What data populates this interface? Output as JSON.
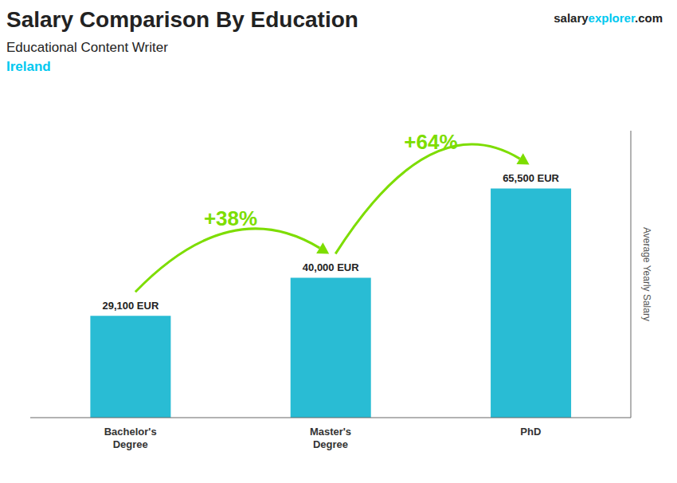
{
  "chart_data": {
    "type": "bar",
    "title": "Salary Comparison By Education",
    "subtitle": "Educational Content Writer",
    "annotations": [
      {
        "text": "Ireland",
        "color": "#00c8f0"
      }
    ],
    "source": [
      {
        "text": "salary"
      },
      {
        "text": "explorer",
        "color": "#00c8f0"
      },
      {
        "text": ".com"
      }
    ],
    "ylabel": "Average Yearly Salary",
    "categories": [
      "Bachelor's\nDegree",
      "Master's\nDegree",
      "PhD"
    ],
    "values": [
      29100,
      40000,
      65500
    ],
    "value_labels": [
      "29,100 EUR",
      "40,000 EUR",
      "65,500 EUR"
    ],
    "data_labels": true,
    "arrows": [
      {
        "label": "+38%",
        "color": "#7ddd00"
      },
      {
        "label": "+64%",
        "color": "#7ddd00"
      }
    ],
    "color": "#29bcd4",
    "ylim": [
      0,
      82000
    ],
    "tick_labels": "x",
    "grid": false
  }
}
